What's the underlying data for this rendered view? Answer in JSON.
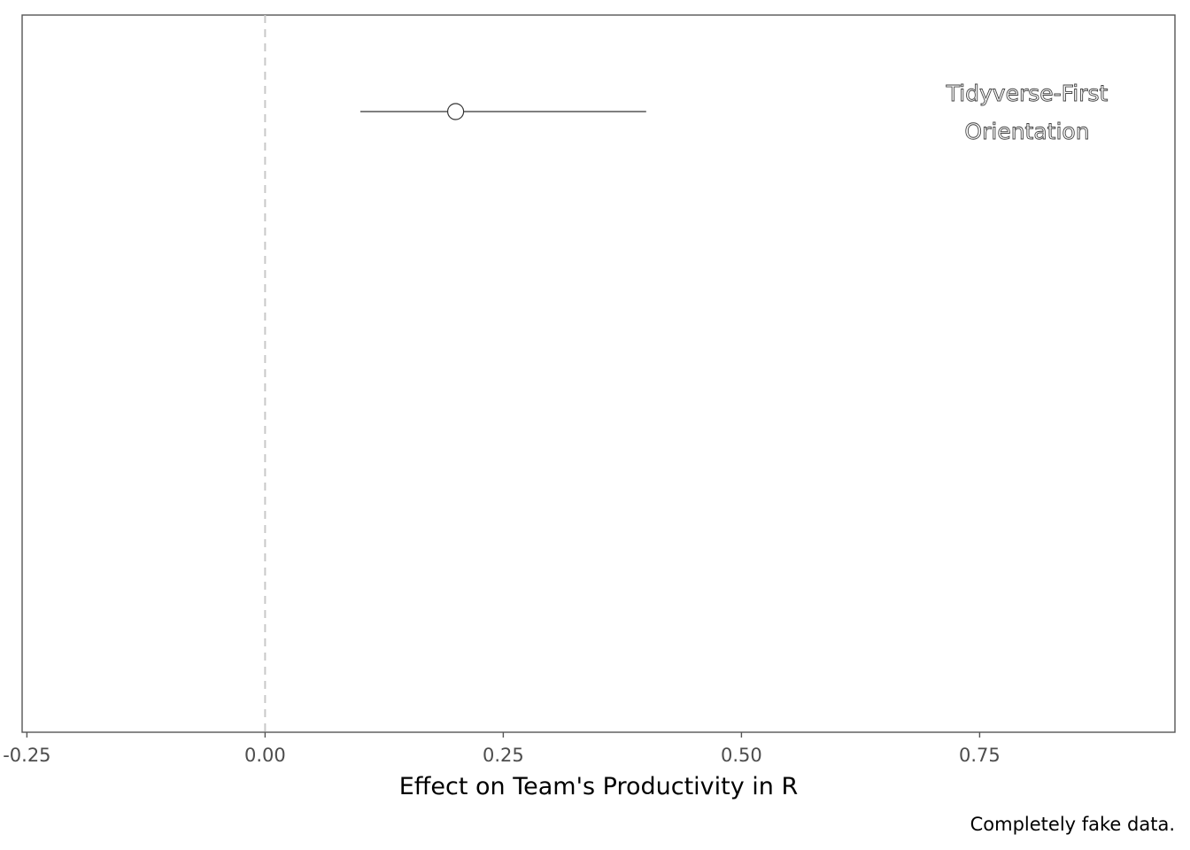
{
  "chart_data": {
    "type": "scatter",
    "title": "",
    "xlabel": "Effect on Team's Productivity in R",
    "ylabel": "",
    "caption": "Completely fake data.",
    "xlim": [
      -0.255,
      0.955
    ],
    "x_ticks": [
      -0.25,
      0.0,
      0.25,
      0.5,
      0.75
    ],
    "x_tick_labels": [
      "-0.25",
      "0.00",
      "0.25",
      "0.50",
      "0.75"
    ],
    "reference_line": {
      "x": 0.0,
      "style": "dashed",
      "color": "#c8c8c8"
    },
    "points": [
      {
        "label": "Tidyverse-First Orientation",
        "label_lines": [
          "Tidyverse-First",
          "Orientation"
        ],
        "estimate": 0.2,
        "lower": 0.1,
        "upper": 0.4
      }
    ],
    "grid": false,
    "legend": "none",
    "colors": {
      "panel_border": "#555555",
      "point_fill": "#ffffff",
      "line": "#333333",
      "label_outline": "#444444"
    }
  }
}
